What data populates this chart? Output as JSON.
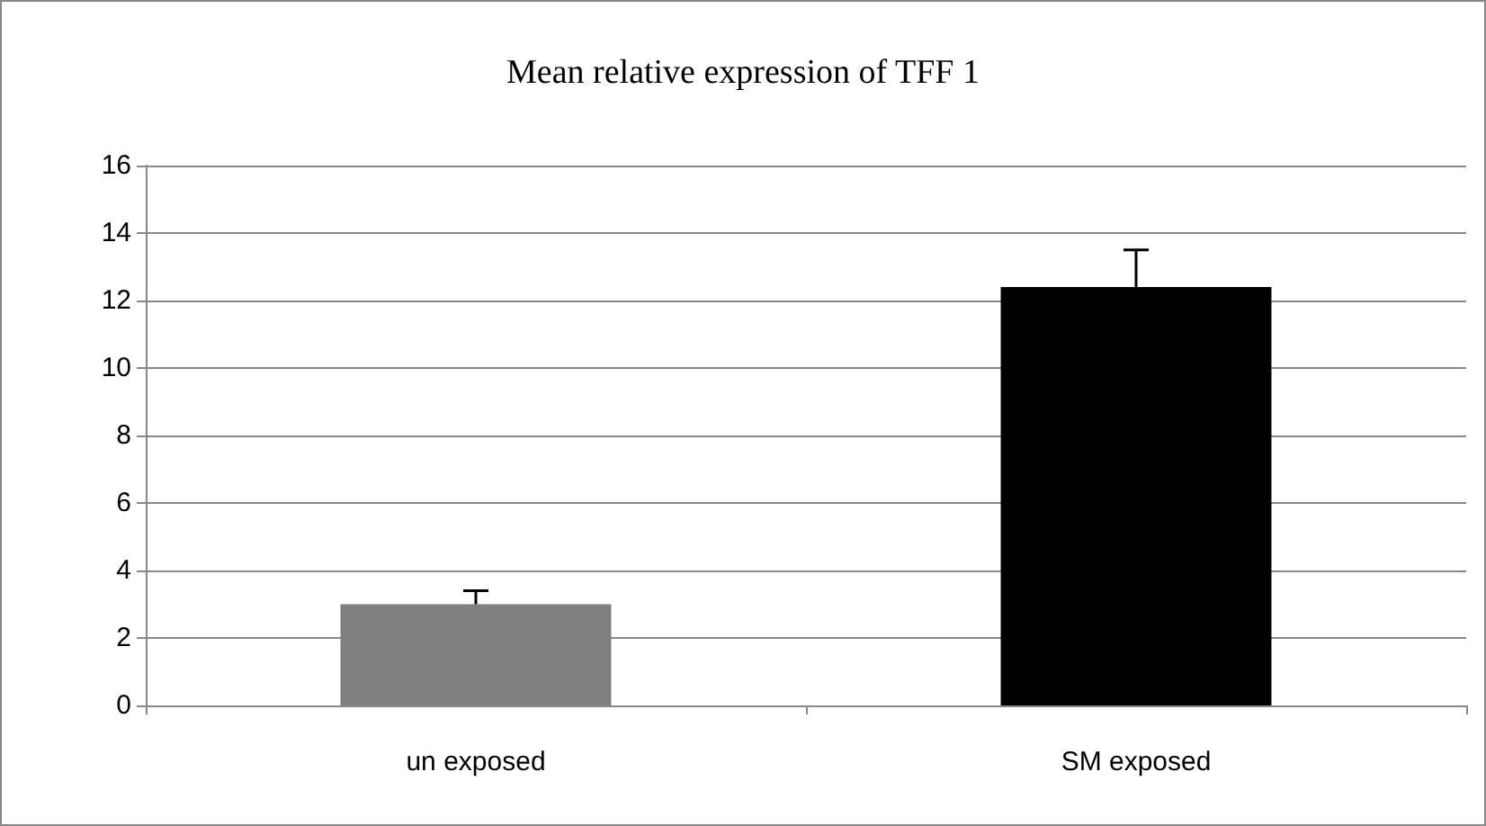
{
  "chart_data": {
    "type": "bar",
    "title": "Mean relative expression of TFF 1",
    "categories": [
      "un exposed",
      "SM exposed"
    ],
    "values": [
      3.0,
      12.4
    ],
    "colors": [
      "#808080",
      "#000000"
    ],
    "errors": [
      [
        3.0,
        3.4
      ],
      [
        12.4,
        13.5
      ]
    ],
    "ylim": [
      0,
      16
    ],
    "yticks": [
      0,
      2,
      4,
      6,
      8,
      10,
      12,
      14,
      16
    ],
    "grid": "y"
  }
}
